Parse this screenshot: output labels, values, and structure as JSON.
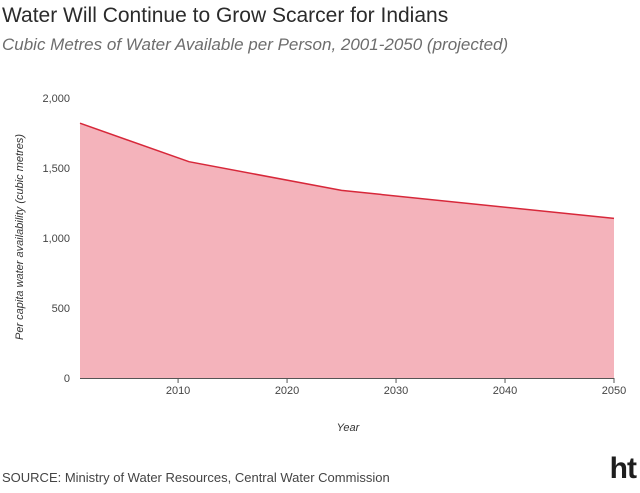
{
  "header": {
    "title": "Water Will Continue to Grow Scarcer for Indians",
    "subtitle": "Cubic Metres of Water Available per Person, 2001-2050 (projected)"
  },
  "footer": {
    "source": "SOURCE: Ministry of Water Resources, Central Water Commission",
    "logo": "ht"
  },
  "colors": {
    "area_fill": "#f4b3bb",
    "line": "#d7283a"
  },
  "chart_data": {
    "type": "area",
    "title": "Water Will Continue to Grow Scarcer for Indians",
    "subtitle": "Cubic Metres of Water Available per Person, 2001-2050 (projected)",
    "xlabel": "Year",
    "ylabel": "Per capita water availability (cubic metres)",
    "x": [
      2001,
      2011,
      2025,
      2050
    ],
    "series": [
      {
        "values": [
          1820,
          1545,
          1340,
          1140
        ]
      }
    ],
    "xlim": [
      2001,
      2050
    ],
    "ylim": [
      0,
      2000
    ],
    "xticks": [
      2010,
      2020,
      2030,
      2040,
      2050
    ],
    "yticks": [
      0,
      500,
      1000,
      1500,
      2000
    ],
    "xtick_labels": [
      "2010",
      "2020",
      "2030",
      "2040",
      "2050"
    ],
    "ytick_labels": [
      "0",
      "500",
      "1,000",
      "1,500",
      "2,000"
    ],
    "grid": false,
    "legend": "none"
  }
}
